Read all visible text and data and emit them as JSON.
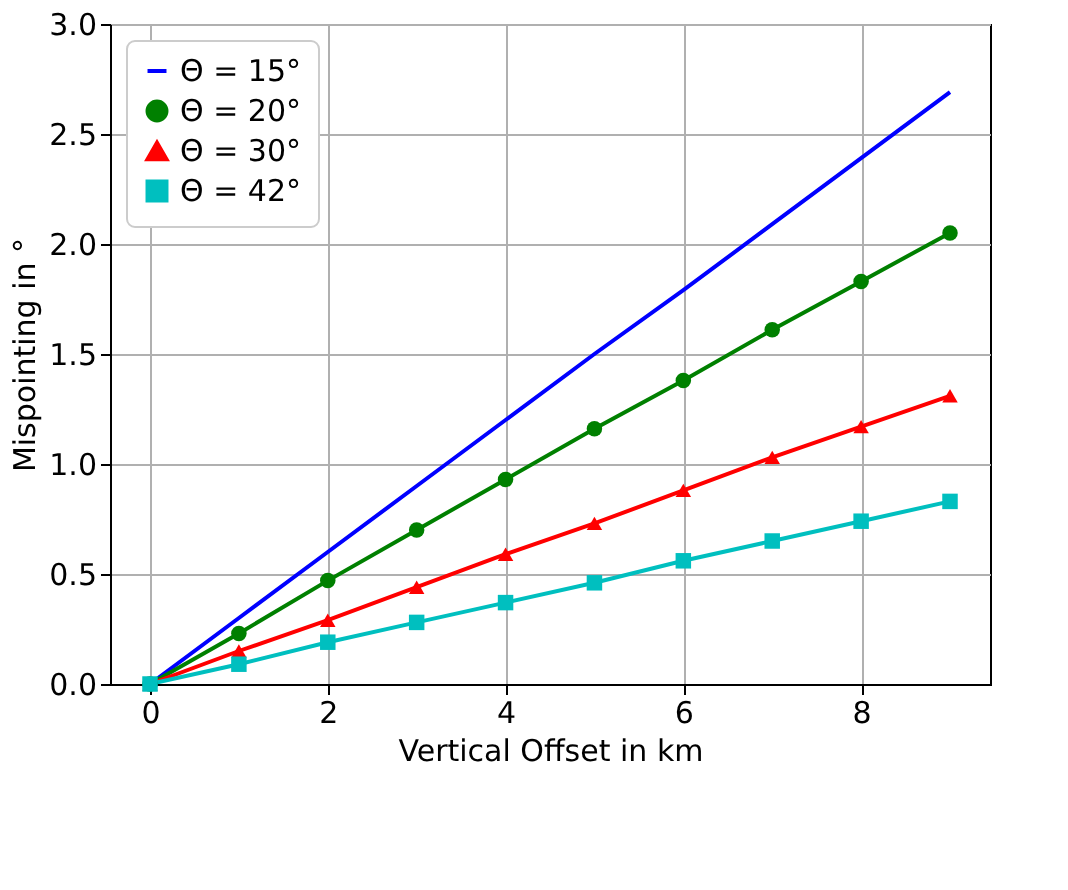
{
  "chart_data": {
    "type": "line",
    "xlabel": "Vertical Offset in km",
    "ylabel": "Mispointing in °",
    "x": [
      0,
      1,
      2,
      3,
      4,
      5,
      6,
      7,
      8,
      9
    ],
    "series": [
      {
        "name": "Θ = 15°",
        "color": "#0000ff",
        "marker": "none",
        "values": [
          0,
          0.3,
          0.6,
          0.9,
          1.2,
          1.5,
          1.79,
          2.09,
          2.39,
          2.69
        ]
      },
      {
        "name": "Θ = 20°",
        "color": "#008000",
        "marker": "circle",
        "values": [
          0,
          0.23,
          0.47,
          0.7,
          0.93,
          1.16,
          1.38,
          1.61,
          1.83,
          2.05
        ]
      },
      {
        "name": "Θ = 30°",
        "color": "#ff0000",
        "marker": "triangle",
        "values": [
          0,
          0.15,
          0.29,
          0.44,
          0.59,
          0.73,
          0.88,
          1.03,
          1.17,
          1.31
        ]
      },
      {
        "name": "Θ = 42°",
        "color": "#00bfbf",
        "marker": "square",
        "values": [
          0,
          0.09,
          0.19,
          0.28,
          0.37,
          0.46,
          0.56,
          0.65,
          0.74,
          0.83
        ]
      }
    ],
    "xlim": [
      -0.45,
      9.45
    ],
    "xticks": [
      0,
      2,
      4,
      6,
      8
    ],
    "ylim": [
      0,
      3
    ],
    "yticks": [
      {
        "value": 0,
        "label": "0.0"
      },
      {
        "value": 0.5,
        "label": "0.5"
      },
      {
        "value": 1,
        "label": "1.0"
      },
      {
        "value": 1.5,
        "label": "1.5"
      },
      {
        "value": 2,
        "label": "2.0"
      },
      {
        "value": 2.5,
        "label": "2.5"
      },
      {
        "value": 3,
        "label": "3.0"
      }
    ],
    "grid": true,
    "legend": "top left",
    "line_style": "solid"
  }
}
